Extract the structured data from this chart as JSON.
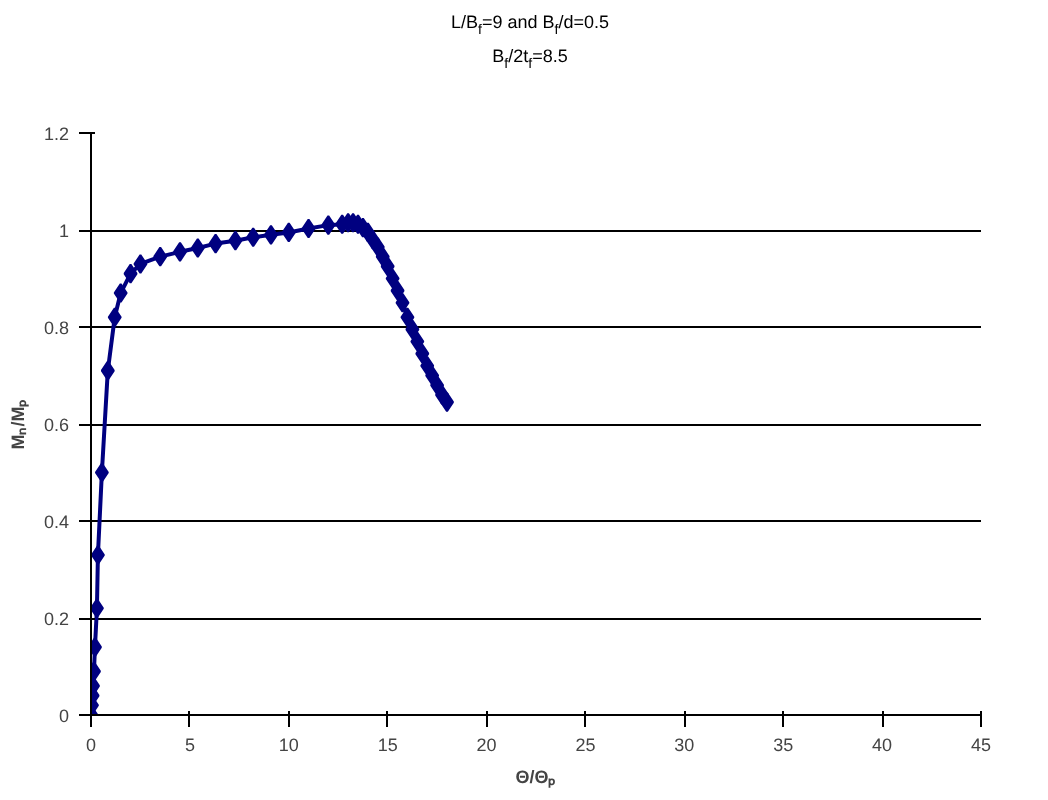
{
  "chart_data": {
    "type": "line",
    "title": "L/B$_{f}$=9 and B$_{f}$/d=0.5",
    "subtitle": "B$_{f}$/2t$_{f}$=8.5",
    "xlabel": "Θ/Θₚ",
    "ylabel": "Mₙ/Mₚ",
    "xlim": [
      0,
      45
    ],
    "xticks": [
      0,
      5,
      10,
      15,
      20,
      25,
      30,
      35,
      40,
      45
    ],
    "ylim": [
      0,
      1.2
    ],
    "yticks": [
      0,
      0.2,
      0.4,
      0.6,
      0.8,
      1,
      1.2
    ],
    "grid": "y",
    "marker": "diamond",
    "line_style": "solid",
    "series": [
      {
        "color": "#000080",
        "x": [
          0.02,
          0.05,
          0.08,
          0.1,
          0.15,
          0.2,
          0.3,
          0.35,
          0.55,
          0.85,
          1.2,
          1.5,
          2.0,
          2.5,
          3.5,
          4.5,
          5.4,
          6.3,
          7.3,
          8.2,
          9.1,
          10.0,
          11.0,
          12.0,
          12.7,
          13.0,
          13.25,
          13.5,
          13.75,
          14.0,
          14.25,
          14.5,
          14.75,
          15.0,
          15.25,
          15.5,
          15.75,
          16.0,
          16.25,
          16.5,
          16.75,
          17.0,
          17.25,
          17.5,
          17.75,
          18.0
        ],
        "values": [
          0.0,
          0.02,
          0.04,
          0.06,
          0.09,
          0.14,
          0.22,
          0.33,
          0.5,
          0.71,
          0.82,
          0.87,
          0.91,
          0.93,
          0.945,
          0.955,
          0.963,
          0.972,
          0.978,
          0.985,
          0.99,
          0.995,
          1.003,
          1.01,
          1.012,
          1.015,
          1.015,
          1.012,
          1.005,
          0.995,
          0.98,
          0.965,
          0.945,
          0.925,
          0.9,
          0.875,
          0.85,
          0.82,
          0.795,
          0.77,
          0.745,
          0.72,
          0.7,
          0.68,
          0.66,
          0.645
        ]
      }
    ]
  }
}
